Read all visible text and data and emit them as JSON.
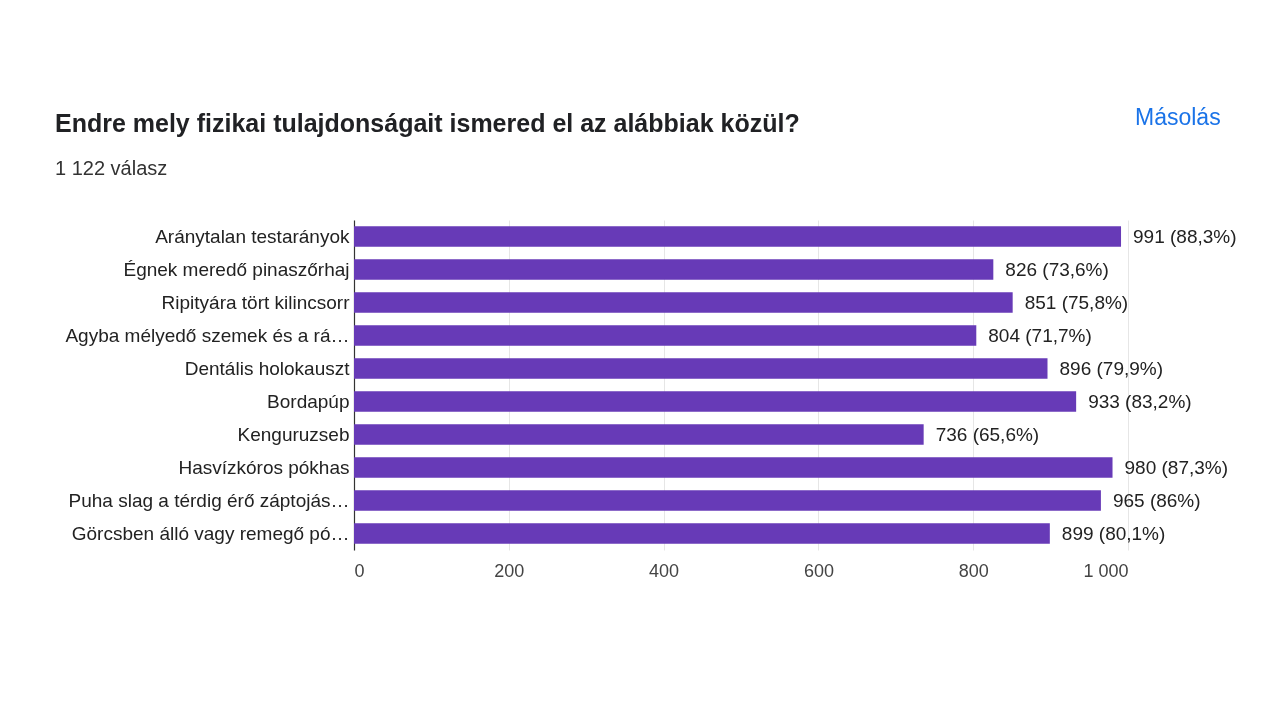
{
  "chart_data": {
    "type": "bar",
    "orientation": "horizontal",
    "title": "Endre mely fizikai tulajdonságait ismered el az alábbiak közül?",
    "subtitle": "1 122 válasz",
    "categories": [
      "Aránytalan testarányok",
      "Égnek meredő pinaszőrhaj",
      "Ripityára tört kilincsorr",
      "Agyba mélyedő szemek és a rá…",
      "Dentális holokauszt",
      "Bordapúp",
      "Kenguruzseb",
      "Hasvízkóros pókhas",
      "Puha slag a térdig érő záptojás…",
      "Görcsben álló vagy remegő pó…"
    ],
    "values": [
      991,
      826,
      851,
      804,
      896,
      933,
      736,
      980,
      965,
      899
    ],
    "value_labels": [
      "991 (88,3%)",
      "826 (73,6%)",
      "851 (75,8%)",
      "804 (71,7%)",
      "896 (79,9%)",
      "933 (83,2%)",
      "736 (65,6%)",
      "980 (87,3%)",
      "965 (86%)",
      "899 (80,1%)"
    ],
    "color": "#673ab7",
    "xlim": [
      0,
      1000
    ],
    "xticks": [
      0,
      200,
      400,
      600,
      800,
      {
        "value": 1000,
        "label": "1 000"
      }
    ],
    "grid": "x",
    "annotations": [
      "Másolás"
    ]
  }
}
